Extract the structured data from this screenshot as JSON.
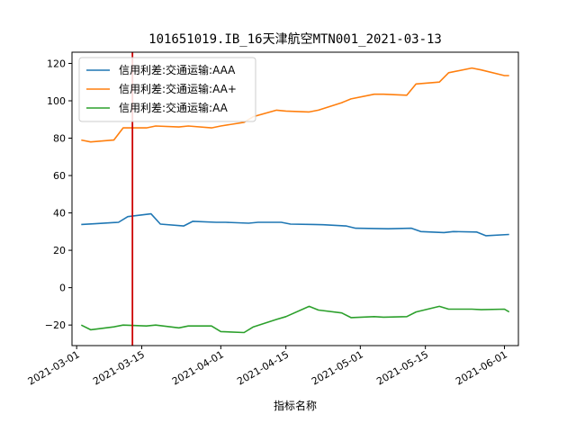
{
  "chart_data": {
    "type": "line",
    "title": "101651019.IB_16天津航空MTN001_2021-03-13",
    "xlabel": "指标名称",
    "ylabel": "",
    "x_type": "date",
    "xlim": [
      "2021-02-28",
      "2021-06-04"
    ],
    "ylim": [
      -31,
      126
    ],
    "x_ticks": [
      "2021-03-01",
      "2021-03-15",
      "2021-04-01",
      "2021-04-15",
      "2021-05-01",
      "2021-05-15",
      "2021-06-01"
    ],
    "y_ticks": [
      -20,
      0,
      20,
      40,
      60,
      80,
      100,
      120
    ],
    "grid": false,
    "legend_position": "top-left",
    "marker_line": {
      "date": "2021-03-13",
      "color": "#cc0000"
    },
    "series": [
      {
        "name": "信用利差:交通运输:AAA",
        "color": "#1f77b4",
        "x": [
          "2021-03-02",
          "2021-03-05",
          "2021-03-10",
          "2021-03-12",
          "2021-03-17",
          "2021-03-19",
          "2021-03-24",
          "2021-03-26",
          "2021-03-31",
          "2021-04-02",
          "2021-04-07",
          "2021-04-09",
          "2021-04-14",
          "2021-04-16",
          "2021-04-21",
          "2021-04-23",
          "2021-04-28",
          "2021-04-30",
          "2021-05-07",
          "2021-05-12",
          "2021-05-14",
          "2021-05-19",
          "2021-05-21",
          "2021-05-26",
          "2021-05-28",
          "2021-06-02"
        ],
        "values": [
          33.8,
          34.2,
          35.0,
          38.0,
          39.5,
          34.0,
          33.0,
          35.5,
          35.0,
          35.0,
          34.5,
          35.0,
          35.0,
          34.0,
          33.8,
          33.7,
          33.0,
          31.8,
          31.5,
          31.8,
          30.0,
          29.5,
          30.0,
          29.8,
          27.8,
          28.5
        ]
      },
      {
        "name": "信用利差:交通运输:AA+",
        "color": "#ff7f0e",
        "x": [
          "2021-03-02",
          "2021-03-04",
          "2021-03-09",
          "2021-03-11",
          "2021-03-16",
          "2021-03-18",
          "2021-03-23",
          "2021-03-25",
          "2021-03-30",
          "2021-04-01",
          "2021-04-06",
          "2021-04-08",
          "2021-04-13",
          "2021-04-15",
          "2021-04-20",
          "2021-04-22",
          "2021-04-27",
          "2021-04-29",
          "2021-05-04",
          "2021-05-06",
          "2021-05-11",
          "2021-05-13",
          "2021-05-18",
          "2021-05-20",
          "2021-05-25",
          "2021-05-27",
          "2021-06-01",
          "2021-06-02"
        ],
        "values": [
          79.0,
          78.0,
          79.0,
          85.5,
          85.5,
          86.5,
          86.0,
          86.5,
          85.5,
          86.5,
          88.5,
          91.5,
          95.0,
          94.5,
          94.0,
          95.0,
          99.0,
          101.0,
          103.5,
          103.5,
          103.0,
          109.0,
          110.0,
          115.0,
          117.5,
          116.5,
          113.5,
          113.5
        ]
      },
      {
        "name": "信用利差:交通运输:AA",
        "color": "#2ca02c",
        "x": [
          "2021-03-02",
          "2021-03-04",
          "2021-03-09",
          "2021-03-11",
          "2021-03-16",
          "2021-03-18",
          "2021-03-23",
          "2021-03-25",
          "2021-03-30",
          "2021-04-01",
          "2021-04-06",
          "2021-04-08",
          "2021-04-13",
          "2021-04-15",
          "2021-04-20",
          "2021-04-22",
          "2021-04-27",
          "2021-04-29",
          "2021-05-04",
          "2021-05-06",
          "2021-05-11",
          "2021-05-13",
          "2021-05-18",
          "2021-05-20",
          "2021-05-25",
          "2021-05-27",
          "2021-06-01",
          "2021-06-02"
        ],
        "values": [
          -20.0,
          -22.5,
          -21.0,
          -20.0,
          -20.5,
          -20.0,
          -21.5,
          -20.5,
          -20.5,
          -23.5,
          -24.0,
          -21.0,
          -17.0,
          -15.5,
          -10.0,
          -12.0,
          -13.5,
          -16.0,
          -15.5,
          -15.8,
          -15.5,
          -13.0,
          -10.0,
          -11.5,
          -11.5,
          -11.8,
          -11.5,
          -13.0
        ]
      }
    ]
  }
}
